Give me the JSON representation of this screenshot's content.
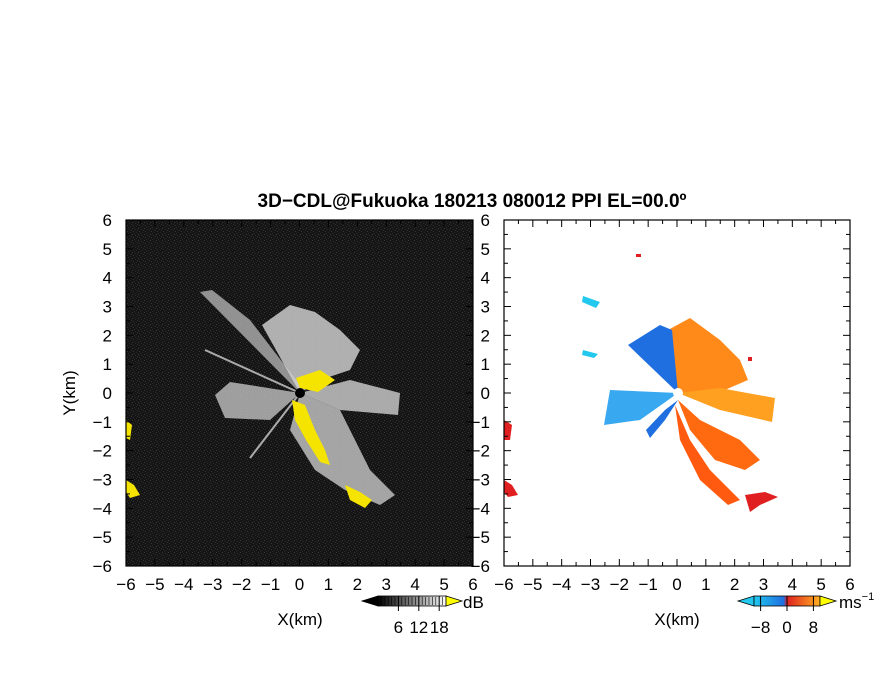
{
  "title": "3D−CDL@Fukuoka 180213 080012 PPI EL=00.0º",
  "colors": {
    "reflectivity_bg": "#1a1a1a",
    "echo_white": "#e8e8e8",
    "echo_yellow": "#f5e400",
    "velocity_bg": "#ffffff",
    "approach_blue": "#1f6fe0",
    "approach_cyan": "#22c8ee",
    "recede_orange": "#ff8a1a",
    "recede_red": "#e02020"
  },
  "chart_data": [
    {
      "type": "heatmap",
      "panel": "reflectivity",
      "xlabel": "X(km)",
      "ylabel": "Y(km)",
      "xlim": [
        -6,
        6
      ],
      "ylim": [
        -6,
        6
      ],
      "x_ticks": [
        "−6",
        "−5",
        "−4",
        "−3",
        "−2",
        "−1",
        "0",
        "1",
        "2",
        "3",
        "4",
        "5",
        "6"
      ],
      "y_ticks": [
        "6",
        "5",
        "4",
        "3",
        "2",
        "1",
        "0",
        "−1",
        "−2",
        "−3",
        "−4",
        "−5",
        "−6"
      ],
      "colorbar": {
        "unit": "dB",
        "ticks": [
          "6",
          "12",
          "18"
        ],
        "tick_values": [
          6,
          12,
          18
        ],
        "range": [
          0,
          20
        ]
      }
    },
    {
      "type": "heatmap",
      "panel": "doppler_velocity",
      "xlabel": "X(km)",
      "xlim": [
        -6,
        6
      ],
      "ylim": [
        -6,
        6
      ],
      "x_ticks": [
        "−6",
        "−5",
        "−4",
        "−3",
        "−2",
        "−1",
        "0",
        "1",
        "2",
        "3",
        "4",
        "5",
        "6"
      ],
      "y_ticks": [
        "6",
        "5",
        "4",
        "3",
        "2",
        "1",
        "0",
        "−1",
        "−2",
        "−3",
        "−4",
        "−5",
        "−6"
      ],
      "colorbar": {
        "unit": "ms",
        "unit_superscript": "−1",
        "ticks": [
          "−8",
          "0",
          "8"
        ],
        "tick_values": [
          -8,
          0,
          8
        ],
        "range": [
          -10,
          10
        ]
      }
    }
  ]
}
